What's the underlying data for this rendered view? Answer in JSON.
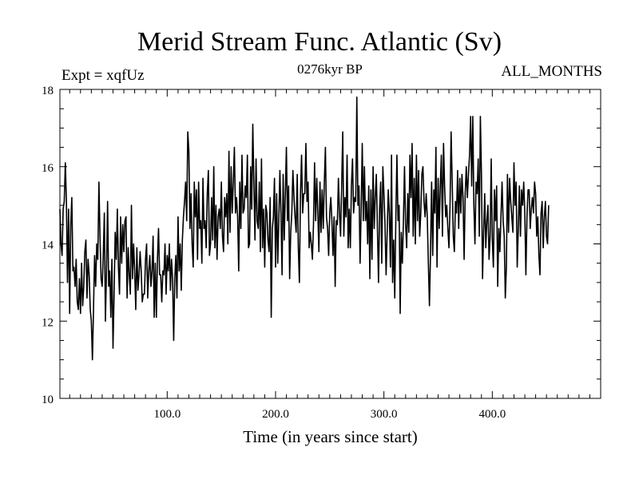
{
  "chart_data": {
    "type": "line",
    "title": "Merid Stream Func. Atlantic (Sv)",
    "subtitle": "0276kyr BP",
    "left_label": "Expt = xqfUz",
    "right_label": "ALL_MONTHS",
    "xlabel": "Time (in years since start)",
    "ylabel": "",
    "xlim": [
      1,
      500
    ],
    "ylim": [
      10,
      18
    ],
    "x_ticks": [
      100,
      200,
      300,
      400
    ],
    "x_tick_labels": [
      "100.0",
      "200.0",
      "300.0",
      "400.0"
    ],
    "y_ticks": [
      10,
      12,
      14,
      16,
      18
    ],
    "y_tick_labels": [
      "10",
      "12",
      "14",
      "16",
      "18"
    ],
    "x_start": 1,
    "x_step": 1,
    "series": [
      {
        "name": "Merid Stream Func. Atlantic",
        "values": [
          14.9,
          14.0,
          13.7,
          14.9,
          15.1,
          16.1,
          15.1,
          13.0,
          14.9,
          12.2,
          14.5,
          15.2,
          13.3,
          13.4,
          12.9,
          13.6,
          12.5,
          12.3,
          13.1,
          12.2,
          13.5,
          12.4,
          12.9,
          13.8,
          14.1,
          12.6,
          13.6,
          13.2,
          12.3,
          12.0,
          11.0,
          12.3,
          13.7,
          12.9,
          14.0,
          13.6,
          15.6,
          14.2,
          13.1,
          12.9,
          13.7,
          14.8,
          12.0,
          13.3,
          15.1,
          12.9,
          13.3,
          12.1,
          13.6,
          11.3,
          12.7,
          14.3,
          13.6,
          14.9,
          13.4,
          12.7,
          14.7,
          13.5,
          14.5,
          13.8,
          14.6,
          14.7,
          12.6,
          13.9,
          13.2,
          12.7,
          15.0,
          13.1,
          14.0,
          13.3,
          12.3,
          13.9,
          12.8,
          13.2,
          13.8,
          13.3,
          12.5,
          12.7,
          12.7,
          13.6,
          14.0,
          12.6,
          13.3,
          13.7,
          12.9,
          13.3,
          14.2,
          12.1,
          13.5,
          12.1,
          13.6,
          14.4,
          13.2,
          13.2,
          12.5,
          13.3,
          13.2,
          14.0,
          12.7,
          13.7,
          13.3,
          14.0,
          12.8,
          13.6,
          13.1,
          11.5,
          13.1,
          13.7,
          12.6,
          14.7,
          13.3,
          14.0,
          12.8,
          14.1,
          14.7,
          15.1,
          15.6,
          14.6,
          16.9,
          16.4,
          14.4,
          15.3,
          14.0,
          13.4,
          15.6,
          14.7,
          15.4,
          13.6,
          15.6,
          14.4,
          14.6,
          13.5,
          15.7,
          14.4,
          14.6,
          13.9,
          15.3,
          15.9,
          13.7,
          14.0,
          15.2,
          14.1,
          16.0,
          13.9,
          15.0,
          13.6,
          14.7,
          14.9,
          14.4,
          15.6,
          14.2,
          13.8,
          15.2,
          14.7,
          15.3,
          14.0,
          16.4,
          14.3,
          16.0,
          14.8,
          15.6,
          16.5,
          14.8,
          15.2,
          14.7,
          13.3,
          15.6,
          14.4,
          16.3,
          14.8,
          14.9,
          15.5,
          15.2,
          16.3,
          13.9,
          14.0,
          16.0,
          14.9,
          17.1,
          15.6,
          14.1,
          16.2,
          14.6,
          14.4,
          15.6,
          13.8,
          16.2,
          13.9,
          14.9,
          13.4,
          15.0,
          14.8,
          14.1,
          13.8,
          15.2,
          12.1,
          14.4,
          14.7,
          15.7,
          13.4,
          15.3,
          13.5,
          14.6,
          15.9,
          14.8,
          13.2,
          15.8,
          14.1,
          15.3,
          16.5,
          14.6,
          15.5,
          13.1,
          14.3,
          14.8,
          15.9,
          15.2,
          14.7,
          14.3,
          15.8,
          13.9,
          13.0,
          15.3,
          16.3,
          14.8,
          15.3,
          15.3,
          16.6,
          15.1,
          15.6,
          13.9,
          14.3,
          14.0,
          13.6,
          14.5,
          16.1,
          14.6,
          15.7,
          14.8,
          13.8,
          15.6,
          14.3,
          15.4,
          14.4,
          15.6,
          16.5,
          14.7,
          14.4,
          13.7,
          14.8,
          15.2,
          14.6,
          13.7,
          14.7,
          12.9,
          14.6,
          14.5,
          15.7,
          14.8,
          14.2,
          15.5,
          16.9,
          14.2,
          15.2,
          14.7,
          16.3,
          13.9,
          14.9,
          13.9,
          15.5,
          16.2,
          14.8,
          15.2,
          15.1,
          17.8,
          15.0,
          15.5,
          13.5,
          14.9,
          16.6,
          14.6,
          16.0,
          14.6,
          15.1,
          14.0,
          15.5,
          13.1,
          15.4,
          13.6,
          16.0,
          14.4,
          15.2,
          15.8,
          14.4,
          13.0,
          14.9,
          15.6,
          13.5,
          16.0,
          15.3,
          14.5,
          13.2,
          14.3,
          15.4,
          14.8,
          13.4,
          16.3,
          13.0,
          14.1,
          12.6,
          14.7,
          16.3,
          14.6,
          15.0,
          12.2,
          14.3,
          13.5,
          14.6,
          16.0,
          14.5,
          13.9,
          15.3,
          14.3,
          16.3,
          15.2,
          16.6,
          14.2,
          15.7,
          14.0,
          16.3,
          14.6,
          15.9,
          14.2,
          14.8,
          15.8,
          16.0,
          15.1,
          14.7,
          15.3,
          14.7,
          13.5,
          12.4,
          13.8,
          15.6,
          13.7,
          15.4,
          14.8,
          16.5,
          13.4,
          15.7,
          14.4,
          15.5,
          16.3,
          14.2,
          16.6,
          15.5,
          14.7,
          15.0,
          14.4,
          13.9,
          15.0,
          16.9,
          15.6,
          14.2,
          13.8,
          15.1,
          14.8,
          15.9,
          14.4,
          15.7,
          14.8,
          15.8,
          15.2,
          13.6,
          15.3,
          16.0,
          15.2,
          15.8,
          16.3,
          17.3,
          15.5,
          17.3,
          15.0,
          14.0,
          15.6,
          15.3,
          16.2,
          14.2,
          17.3,
          15.8,
          13.1,
          14.3,
          15.3,
          13.9,
          14.6,
          15.0,
          13.6,
          14.2,
          16.2,
          14.1,
          13.4,
          15.4,
          14.6,
          15.5,
          12.9,
          14.4,
          13.8,
          14.7,
          15.6,
          14.6,
          14.2,
          12.6,
          13.4,
          15.8,
          14.3,
          15.7,
          15.1,
          14.7,
          14.3,
          16.1,
          15.0,
          15.6,
          13.4,
          14.4,
          15.5,
          14.2,
          15.4,
          15.0,
          15.6,
          14.8,
          13.2,
          14.7,
          15.4,
          15.4,
          14.4,
          14.9,
          15.2,
          14.8,
          15.6,
          15.3,
          14.2,
          14.7,
          13.7,
          13.2,
          14.8,
          15.1,
          13.9,
          14.7,
          15.1,
          14.2,
          14.0,
          15.0
        ]
      }
    ]
  }
}
